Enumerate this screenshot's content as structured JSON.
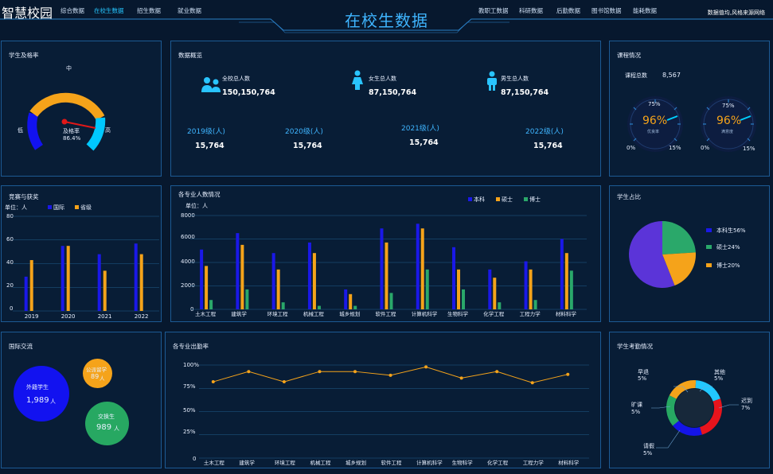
{
  "header": {
    "logo": "智慧校园",
    "nav_left": [
      "综合数据",
      "在校生数据",
      "招生数据",
      "就业数据"
    ],
    "active_nav": "在校生数据",
    "title": "在校生数据",
    "nav_right": [
      "教职工数据",
      "科研数据",
      "后勤数据",
      "图书馆数据",
      "能耗数据"
    ],
    "right_text": "数据值均,风格来源网络"
  },
  "pass_rate": {
    "title": "学生及格率",
    "low_label": "低",
    "mid_label": "中",
    "high_label": "高",
    "center_label": "及格率",
    "value_text": "86.4%",
    "value": 0.864
  },
  "overview": {
    "title": "数据概览",
    "totals": [
      {
        "label": "全校总人数",
        "value": "150,150,764",
        "icon": "group-icon"
      },
      {
        "label": "女生总人数",
        "value": "87,150,764",
        "icon": "female-icon"
      },
      {
        "label": "男生总人数",
        "value": "87,150,764",
        "icon": "male-icon"
      }
    ],
    "grades": [
      {
        "label": "2019级(人)",
        "value": "15,764"
      },
      {
        "label": "2020级(人)",
        "value": "15,764"
      },
      {
        "label": "2021级(人)",
        "value": "15,764"
      },
      {
        "label": "2022级(人)",
        "value": "15,764"
      }
    ]
  },
  "courses": {
    "title": "课程情况",
    "total_label": "课程总数",
    "total_value": "8,567",
    "gauges": [
      {
        "percent_text": "96%",
        "sub": "优良率",
        "tick_top": "75%",
        "tick_left": "0%",
        "tick_right": "15%",
        "value": 0.96
      },
      {
        "percent_text": "96%",
        "sub": "满意度",
        "tick_top": "75%",
        "tick_left": "0%",
        "tick_right": "15%",
        "value": 0.96
      }
    ]
  },
  "competition": {
    "title": "竞赛与获奖",
    "unit": "单位：人",
    "legend": [
      {
        "name": "国际",
        "color": "#1a18e8"
      },
      {
        "name": "省级",
        "color": "#f5a31a"
      }
    ],
    "yticks": [
      "80",
      "60",
      "40",
      "20",
      "0"
    ]
  },
  "major_count": {
    "title": "各专业人数情况",
    "unit": "单位：人",
    "legend": [
      {
        "name": "本科",
        "color": "#1a18e8"
      },
      {
        "name": "硕士",
        "color": "#f5a31a"
      },
      {
        "name": "博士",
        "color": "#2aa86a"
      }
    ],
    "yticks": [
      "8000",
      "6000",
      "4000",
      "2000",
      "0"
    ]
  },
  "student_ratio": {
    "title": "学生占比",
    "legend": [
      {
        "label": "本科生56%",
        "color": "#1a18e8"
      },
      {
        "label": "硕士24%",
        "color": "#2aa86a"
      },
      {
        "label": "博士20%",
        "color": "#f5a31a"
      }
    ]
  },
  "exchange": {
    "title": "国际交流",
    "bubbles": [
      {
        "label": "外籍学生",
        "value": "1,989",
        "unit": "人",
        "color": "#1212f0"
      },
      {
        "label": "公派留学",
        "value": "89",
        "unit": "人",
        "color": "#f5a31a"
      },
      {
        "label": "交换生",
        "value": "989",
        "unit": "人",
        "color": "#27a862"
      }
    ]
  },
  "attendance_rate": {
    "title": "各专业出勤率",
    "yticks": [
      "100%",
      "75%",
      "50%",
      "25%",
      "0"
    ]
  },
  "attendance": {
    "title": "学生考勤情况",
    "labels": [
      {
        "name": "早退",
        "pct": "5%"
      },
      {
        "name": "其他",
        "pct": "5%"
      },
      {
        "name": "旷课",
        "pct": "5%"
      },
      {
        "name": "迟到",
        "pct": "7%"
      },
      {
        "name": "请假",
        "pct": "5%"
      }
    ]
  },
  "chart_data": [
    {
      "type": "bar",
      "title": "竞赛与获奖",
      "ylabel": "单位：人",
      "ylim": [
        0,
        80
      ],
      "categories": [
        "2019",
        "2020",
        "2021",
        "2022"
      ],
      "series": [
        {
          "name": "国际",
          "values": [
            29,
            55,
            48,
            57
          ]
        },
        {
          "name": "省级",
          "values": [
            43,
            55,
            34,
            48
          ]
        }
      ]
    },
    {
      "type": "bar",
      "title": "各专业人数情况",
      "ylabel": "单位：人",
      "ylim": [
        0,
        8000
      ],
      "categories": [
        "土木工程",
        "建筑学",
        "环境工程",
        "机械工程",
        "城乡规划",
        "软件工程",
        "计算机科学",
        "生物科学",
        "化学工程",
        "工程力学",
        "材料科学"
      ],
      "series": [
        {
          "name": "本科",
          "values": [
            5100,
            6500,
            4800,
            5700,
            1700,
            6900,
            7300,
            5300,
            3400,
            4100,
            6000
          ]
        },
        {
          "name": "硕士",
          "values": [
            3700,
            5500,
            3400,
            4800,
            1300,
            5700,
            6900,
            3400,
            2700,
            3400,
            4800
          ]
        },
        {
          "name": "博士",
          "values": [
            800,
            1700,
            600,
            300,
            300,
            1400,
            3400,
            1700,
            600,
            800,
            3300
          ]
        }
      ]
    },
    {
      "type": "pie",
      "title": "学生占比",
      "categories": [
        "本科生",
        "硕士",
        "博士"
      ],
      "values": [
        56,
        24,
        20
      ]
    },
    {
      "type": "line",
      "title": "各专业出勤率",
      "ylim": [
        0,
        100
      ],
      "categories": [
        "土木工程",
        "建筑学",
        "环境工程",
        "机械工程",
        "城乡规划",
        "软件工程",
        "计算机科学",
        "生物科学",
        "化学工程",
        "工程力学",
        "材料科学"
      ],
      "series": [
        {
          "values": [
            82,
            93,
            82,
            93,
            93,
            89,
            98,
            86,
            93,
            81,
            90
          ]
        }
      ]
    },
    {
      "type": "pie",
      "title": "学生考勤情况",
      "categories": [
        "早退",
        "其他",
        "迟到",
        "请假",
        "旷课"
      ],
      "values": [
        5,
        5,
        7,
        5,
        5
      ]
    }
  ]
}
